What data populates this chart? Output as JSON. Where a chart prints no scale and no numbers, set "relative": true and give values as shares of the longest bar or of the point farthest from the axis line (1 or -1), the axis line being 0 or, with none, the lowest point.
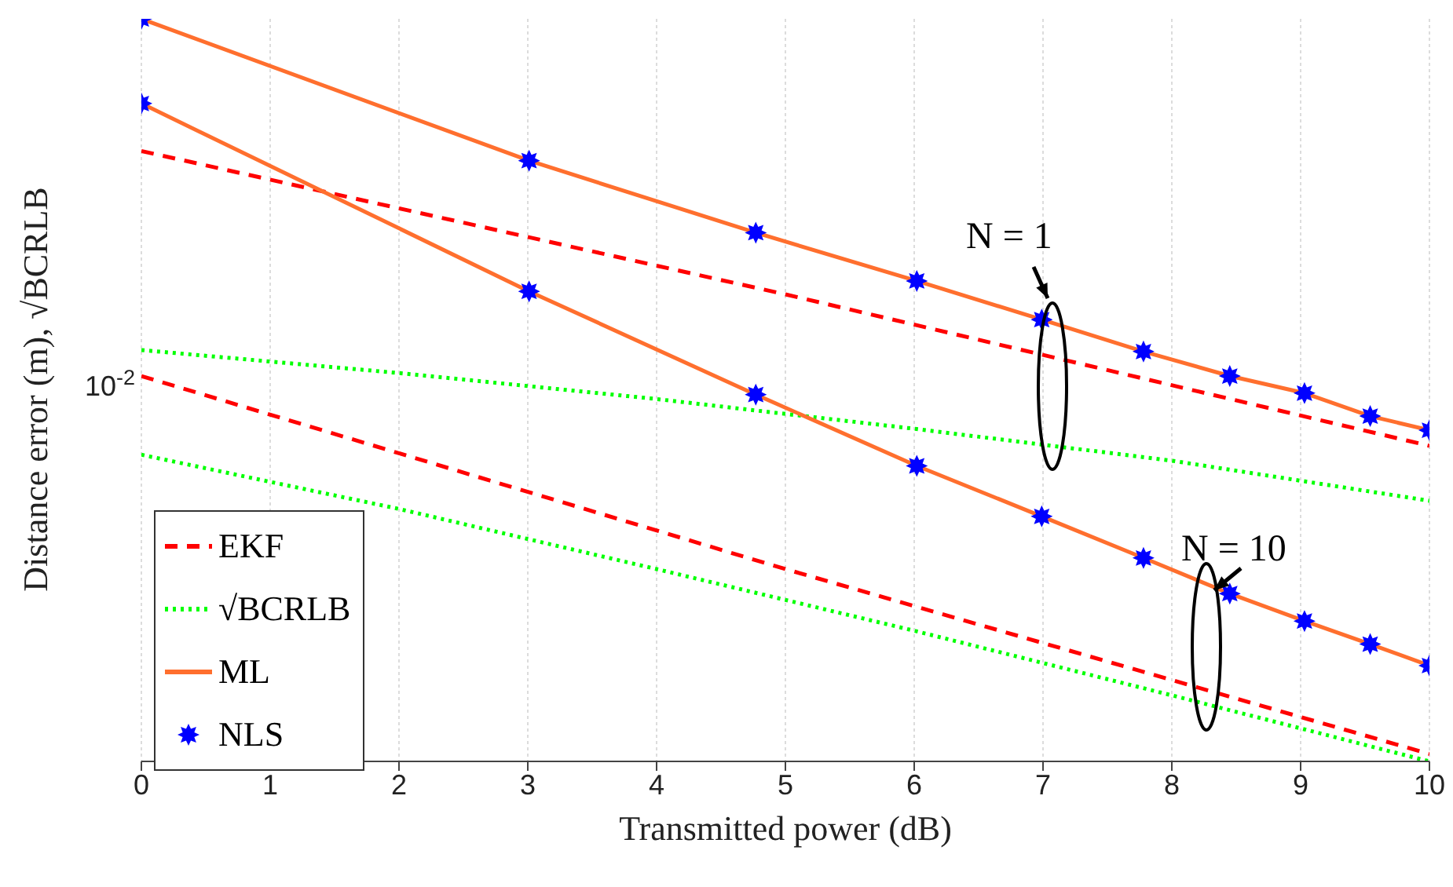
{
  "chart_data": {
    "type": "line",
    "xlabel": "Transmitted power (dB)",
    "ylabel": "Distance error (m), √BCRLB",
    "grid": "x",
    "legend": "bottom left",
    "relative": true,
    "xlim": [
      0,
      10
    ],
    "xticks": [
      0,
      1,
      2,
      3,
      4,
      5,
      6,
      7,
      8,
      9,
      10
    ],
    "series": [
      {
        "name": "EKF",
        "color": "#ff0000",
        "line_style": "dashed",
        "marker": "none",
        "x": [
          0,
          5,
          10
        ],
        "values": [
          0.822,
          0.629,
          0.425
        ]
      },
      {
        "color": "#ff0000",
        "line_style": "dashed",
        "marker": "none",
        "x": [
          0,
          5,
          10
        ],
        "values": [
          0.519,
          0.259,
          0.01
        ]
      },
      {
        "name": "√BCRLB",
        "color": "#00ff00",
        "line_style": "dotted",
        "marker": "none",
        "x": [
          0,
          2,
          4,
          6,
          8,
          10
        ],
        "values": [
          0.554,
          0.523,
          0.488,
          0.448,
          0.405,
          0.351
        ]
      },
      {
        "color": "#00ff00",
        "line_style": "dotted",
        "marker": "none",
        "x": [
          0,
          2,
          4,
          6,
          8,
          10
        ],
        "values": [
          0.413,
          0.34,
          0.259,
          0.176,
          0.089,
          0
        ]
      },
      {
        "name": "ML",
        "color": "#ff6f2e",
        "line_style": "solid",
        "marker": "none",
        "x": [
          0,
          3.01,
          4.77,
          6.02,
          6.99,
          7.78,
          8.45,
          9.03,
          9.54,
          10
        ],
        "values": [
          1,
          0.809,
          0.712,
          0.647,
          0.595,
          0.552,
          0.519,
          0.496,
          0.465,
          0.446
        ]
      },
      {
        "color": "#ff6f2e",
        "line_style": "solid",
        "marker": "none",
        "x": [
          0,
          3.01,
          4.77,
          6.02,
          6.99,
          7.78,
          8.45,
          9.03,
          9.54,
          10
        ],
        "values": [
          0.886,
          0.633,
          0.494,
          0.398,
          0.33,
          0.274,
          0.226,
          0.189,
          0.158,
          0.129
        ]
      },
      {
        "name": "NLS",
        "type": "scatter",
        "color": "#0000ff",
        "marker": "star",
        "x": [
          0,
          3.01,
          4.77,
          6.02,
          6.99,
          7.78,
          8.45,
          9.03,
          9.54,
          10
        ],
        "values": [
          1,
          0.809,
          0.712,
          0.647,
          0.595,
          0.552,
          0.519,
          0.496,
          0.465,
          0.446
        ]
      },
      {
        "type": "scatter",
        "color": "#0000ff",
        "marker": "star",
        "x": [
          0,
          3.01,
          4.77,
          6.02,
          6.99,
          7.78,
          8.45,
          9.03,
          9.54,
          10
        ],
        "values": [
          0.886,
          0.633,
          0.494,
          0.398,
          0.33,
          0.274,
          0.226,
          0.189,
          0.158,
          0.129
        ]
      }
    ],
    "annotations": [
      "N = 1",
      "N = 10",
      "10$^{-2}$"
    ]
  }
}
